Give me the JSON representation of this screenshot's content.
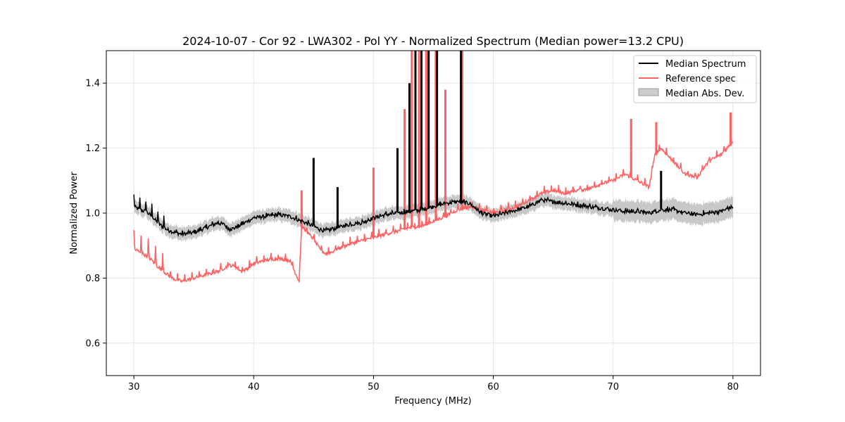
{
  "chart_data": {
    "type": "line",
    "title": "2024-10-07 - Cor 92 - LWA302 - Pol YY - Normalized Spectrum (Median power=13.2 CPU)",
    "xlabel": "Frequency (MHz)",
    "ylabel": "Normalized Power",
    "xlim": [
      27.7,
      82.3
    ],
    "ylim": [
      0.5,
      1.5
    ],
    "xticks": [
      30,
      40,
      50,
      60,
      70,
      80
    ],
    "yticks": [
      0.6,
      0.8,
      1.0,
      1.2,
      1.4
    ],
    "xtick_labels": [
      "30",
      "40",
      "50",
      "60",
      "70",
      "80"
    ],
    "ytick_labels": [
      "0.6",
      "0.8",
      "1.0",
      "1.2",
      "1.4"
    ],
    "grid": true,
    "legend_position": "top-right",
    "series": [
      {
        "name": "Median Spectrum",
        "color": "#000000",
        "x": [
          30,
          30.5,
          31,
          31.5,
          32,
          32.5,
          33,
          33.5,
          34,
          35,
          36,
          37,
          37.5,
          38,
          38.5,
          39,
          39.5,
          40,
          41,
          42,
          43,
          44,
          45,
          45.5,
          46,
          46.5,
          47,
          48,
          49,
          50,
          51,
          52,
          53,
          54,
          55,
          56,
          57,
          58,
          59,
          60,
          61,
          62,
          63,
          64,
          65,
          66,
          67,
          68,
          69,
          70,
          71,
          72,
          73,
          74,
          75,
          76,
          77,
          78,
          79,
          80
        ],
        "y": [
          1.02,
          1.01,
          1.005,
          0.99,
          0.97,
          0.955,
          0.945,
          0.94,
          0.935,
          0.94,
          0.955,
          0.97,
          0.965,
          0.95,
          0.955,
          0.965,
          0.975,
          0.985,
          0.99,
          0.995,
          0.99,
          0.975,
          0.96,
          0.95,
          0.945,
          0.95,
          0.955,
          0.965,
          0.97,
          0.985,
          0.995,
          1.0,
          1.005,
          1.01,
          1.02,
          1.03,
          1.035,
          1.03,
          1.0,
          0.99,
          1.0,
          1.01,
          1.02,
          1.04,
          1.035,
          1.03,
          1.025,
          1.02,
          1.015,
          1.01,
          1.005,
          1.005,
          1.0,
          1.01,
          1.01,
          1.0,
          0.995,
          1.0,
          1.005,
          1.02
        ],
        "spikes": [
          {
            "x": 45.0,
            "y": 1.17
          },
          {
            "x": 47.0,
            "y": 1.08
          },
          {
            "x": 52.0,
            "y": 1.2
          },
          {
            "x": 53.0,
            "y": 1.4
          },
          {
            "x": 53.5,
            "y": 1.5
          },
          {
            "x": 54.0,
            "y": 1.5
          },
          {
            "x": 54.6,
            "y": 1.5
          },
          {
            "x": 55.3,
            "y": 1.5
          },
          {
            "x": 57.3,
            "y": 1.5
          },
          {
            "x": 74.0,
            "y": 1.13
          }
        ]
      },
      {
        "name": "Reference spec",
        "color": "#ff6262",
        "x": [
          30,
          30.5,
          31,
          31.5,
          32,
          32.5,
          33,
          33.5,
          34,
          35,
          36,
          37,
          38,
          38.5,
          39,
          39.5,
          40,
          41,
          42,
          43,
          43.8,
          44,
          45,
          45.5,
          46,
          46.5,
          47,
          48,
          49,
          50,
          51,
          52,
          53,
          54,
          55,
          56,
          57,
          58,
          59,
          60,
          61,
          62,
          63,
          64,
          65,
          66,
          67,
          68,
          69,
          70,
          71,
          72,
          73,
          73.5,
          74,
          75,
          76,
          77,
          78,
          79,
          80
        ],
        "y": [
          0.89,
          0.88,
          0.87,
          0.855,
          0.835,
          0.82,
          0.805,
          0.795,
          0.79,
          0.8,
          0.81,
          0.82,
          0.84,
          0.835,
          0.82,
          0.83,
          0.845,
          0.855,
          0.86,
          0.855,
          0.79,
          0.96,
          0.92,
          0.89,
          0.875,
          0.88,
          0.89,
          0.905,
          0.915,
          0.925,
          0.935,
          0.945,
          0.955,
          0.96,
          0.975,
          0.99,
          1.01,
          1.02,
          1.01,
          1.0,
          1.01,
          1.02,
          1.04,
          1.06,
          1.07,
          1.06,
          1.07,
          1.075,
          1.09,
          1.1,
          1.12,
          1.1,
          1.08,
          1.18,
          1.2,
          1.16,
          1.12,
          1.11,
          1.16,
          1.18,
          1.22
        ],
        "spikes": [
          {
            "x": 44.0,
            "y": 1.07
          },
          {
            "x": 50.0,
            "y": 1.14
          },
          {
            "x": 52.6,
            "y": 1.32
          },
          {
            "x": 53.2,
            "y": 1.5
          },
          {
            "x": 53.8,
            "y": 1.5
          },
          {
            "x": 54.4,
            "y": 1.5
          },
          {
            "x": 55.2,
            "y": 1.5
          },
          {
            "x": 56.0,
            "y": 1.38
          },
          {
            "x": 57.4,
            "y": 1.5
          },
          {
            "x": 71.5,
            "y": 1.29
          },
          {
            "x": 73.6,
            "y": 1.28
          },
          {
            "x": 79.8,
            "y": 1.31
          }
        ]
      }
    ],
    "band": {
      "name": "Median Abs. Dev.",
      "color": "#b0b0b0",
      "halfwidth": 0.02
    }
  }
}
